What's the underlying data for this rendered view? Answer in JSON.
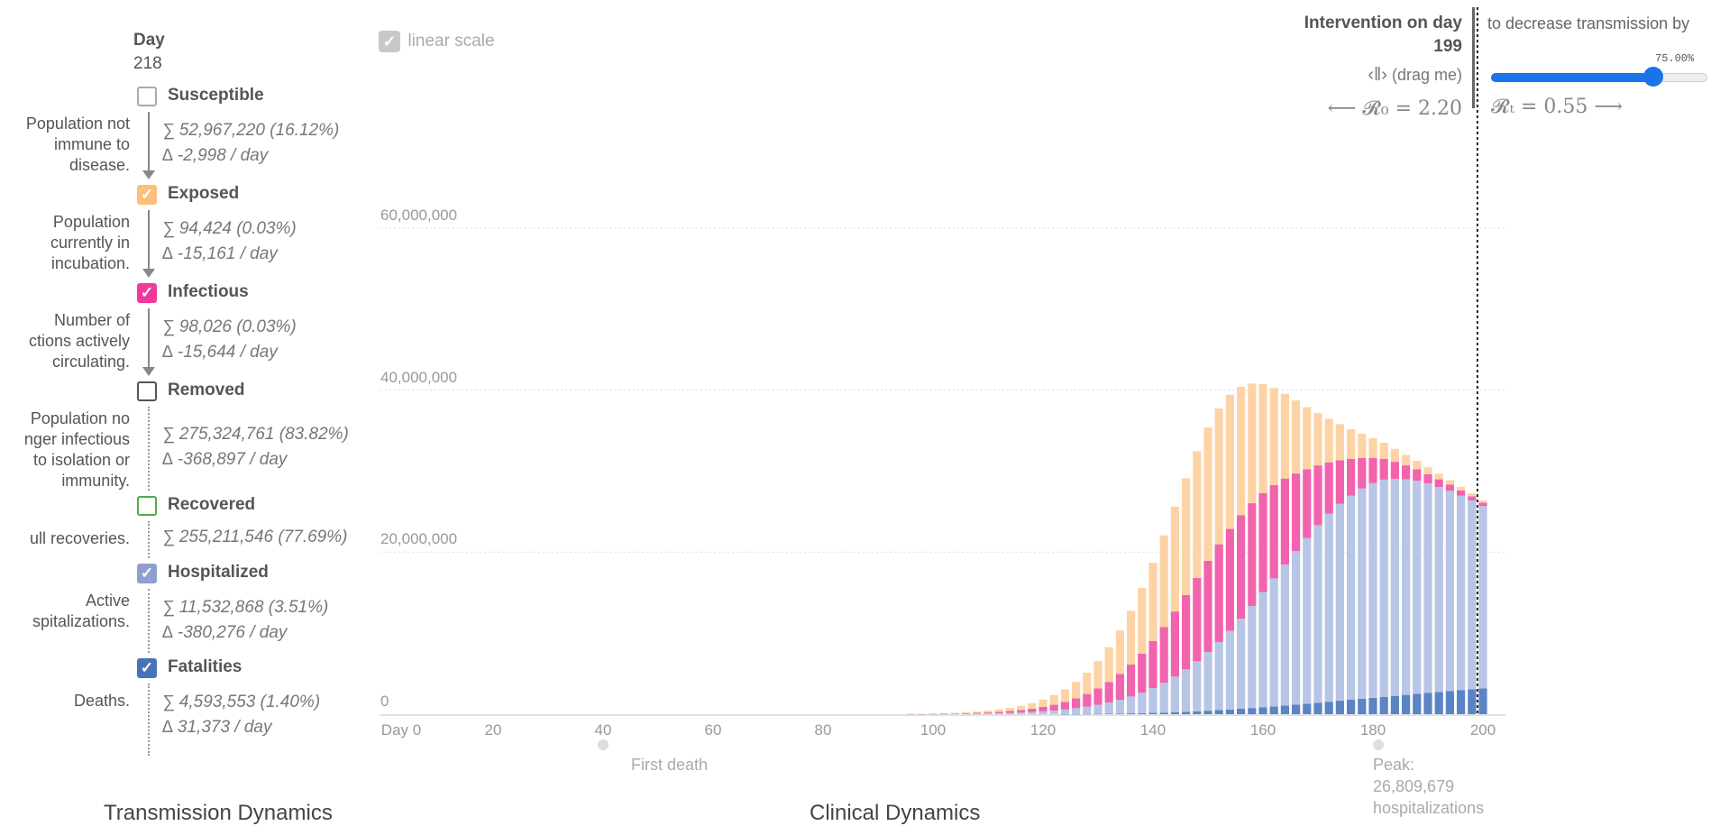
{
  "sidebar": {
    "day_title": "Day",
    "day_value": "218",
    "items": [
      {
        "label": "Susceptible",
        "checked": false,
        "color": "#aaaaaa",
        "desc_lines": [
          "Population not",
          "immune to",
          "disease."
        ],
        "sum": "∑ 52,967,220 (16.12%)",
        "delta": "∆ -2,998 / day",
        "connector": "arrow"
      },
      {
        "label": "Exposed",
        "checked": true,
        "color": "#fdbf7e",
        "desc_lines": [
          "Population",
          "currently in",
          "incubation."
        ],
        "sum": "∑ 94,424 (0.03%)",
        "delta": "∆ -15,161 / day",
        "connector": "arrow"
      },
      {
        "label": "Infectious",
        "checked": true,
        "color": "#f0399a",
        "desc_lines": [
          "Number of",
          "ctions actively",
          "circulating."
        ],
        "sum": "∑ 98,026 (0.03%)",
        "delta": "∆ -15,644 / day",
        "connector": "arrow"
      },
      {
        "label": "Removed",
        "checked": false,
        "color": "#555555",
        "desc_lines": [
          "Population no",
          "nger infectious",
          "to isolation or",
          "immunity."
        ],
        "sum": "∑ 275,324,761 (83.82%)",
        "delta": "∆ -368,897 / day",
        "connector": "dotted"
      },
      {
        "label": "Recovered",
        "checked": false,
        "color": "#4caf50",
        "desc_lines": [
          "ull recoveries."
        ],
        "sum": "∑ 255,211,546 (77.69%)",
        "delta": "",
        "connector": "dotted"
      },
      {
        "label": "Hospitalized",
        "checked": true,
        "color": "#8f9fcf",
        "desc_lines": [
          "Active",
          "spitalizations."
        ],
        "sum": "∑ 11,532,868 (3.51%)",
        "delta": "∆ -380,276 / day",
        "connector": "dotted"
      },
      {
        "label": "Fatalities",
        "checked": true,
        "color": "#4a72b8",
        "desc_lines": [
          "Deaths."
        ],
        "sum": "∑ 4,593,553 (1.40%)",
        "delta": "∆ 31,373 / day",
        "connector": "dotted"
      }
    ]
  },
  "controls": {
    "linear_scale_label": "linear scale",
    "intervention_title": "Intervention on day",
    "intervention_day": "199",
    "drag_label": "(drag me)",
    "r0_label": "⟵ 𝓡₀ = 2.20",
    "decrease_label": "to decrease transmission by",
    "decrease_value": "75.00%",
    "decrease_fraction": 0.75,
    "rt_label": "𝓡ₜ = 0.55 ⟶"
  },
  "annotations": {
    "first_death": "First death",
    "peak_lines": [
      "Peak:",
      "26,809,679",
      "hospitalizations"
    ]
  },
  "sections": {
    "left": "Transmission Dynamics",
    "right": "Clinical Dynamics"
  },
  "chart_data": {
    "type": "bar",
    "stacked": true,
    "x_tick_labels": [
      "Day 0",
      "20",
      "40",
      "60",
      "80",
      "100",
      "120",
      "140",
      "160",
      "180",
      "200"
    ],
    "x_ticks": [
      0,
      20,
      40,
      60,
      80,
      100,
      120,
      140,
      160,
      180,
      200
    ],
    "y_tick_labels": [
      "0",
      "20,000,000",
      "40,000,000",
      "60,000,000"
    ],
    "y_ticks": [
      0,
      20000000,
      40000000,
      60000000
    ],
    "xlim": [
      0,
      200
    ],
    "ylim": [
      0,
      77000000
    ],
    "grid": true,
    "intervention_day": 199,
    "first_death_day": 40,
    "peak_day": 181,
    "day_step": 2,
    "days": [
      96,
      98,
      100,
      102,
      104,
      106,
      108,
      110,
      112,
      114,
      116,
      118,
      120,
      122,
      124,
      126,
      128,
      130,
      132,
      134,
      136,
      138,
      140,
      142,
      144,
      146,
      148,
      150,
      152,
      154,
      156,
      158,
      160,
      162,
      164,
      166,
      168,
      170,
      172,
      174,
      176,
      178,
      180,
      182,
      184,
      186,
      188,
      190,
      192,
      194,
      196,
      198,
      200
    ],
    "series": [
      {
        "name": "Fatalities",
        "color": "#5b84c4",
        "values": [
          0,
          0,
          0,
          0,
          0,
          0,
          0,
          0,
          0,
          0,
          0,
          0,
          0,
          0,
          10000,
          20000,
          30000,
          50000,
          60000,
          80000,
          100000,
          130000,
          160000,
          200000,
          250000,
          300000,
          360000,
          430000,
          500000,
          580000,
          670000,
          760000,
          860000,
          960000,
          1070000,
          1180000,
          1300000,
          1420000,
          1540000,
          1660000,
          1780000,
          1900000,
          2020000,
          2140000,
          2260000,
          2380000,
          2500000,
          2620000,
          2740000,
          2860000,
          2980000,
          3080000,
          3180000
        ]
      },
      {
        "name": "Hospitalized",
        "color": "#b7c5e6",
        "values": [
          10000,
          10000,
          20000,
          30000,
          40000,
          50000,
          70000,
          90000,
          120000,
          160000,
          210000,
          270000,
          350000,
          450000,
          570000,
          720000,
          900000,
          1120000,
          1380000,
          1700000,
          2080000,
          2530000,
          3060000,
          3680000,
          4400000,
          5230000,
          6170000,
          7230000,
          8410000,
          9700000,
          11100000,
          12600000,
          14200000,
          15800000,
          17400000,
          18950000,
          20450000,
          21900000,
          23200000,
          24300000,
          25200000,
          25950000,
          26500000,
          26800000,
          26780000,
          26600000,
          26300000,
          25850000,
          25300000,
          24700000,
          24000000,
          23300000,
          22500000
        ]
      },
      {
        "name": "Infectious",
        "color": "#f263ad",
        "values": [
          10000,
          20000,
          20000,
          30000,
          50000,
          70000,
          90000,
          120000,
          170000,
          230000,
          300000,
          400000,
          540000,
          710000,
          930000,
          1210000,
          1560000,
          2000000,
          2540000,
          3180000,
          3940000,
          4820000,
          5800000,
          6880000,
          8020000,
          9170000,
          10280000,
          11260000,
          12050000,
          12580000,
          12790000,
          12670000,
          12230000,
          11520000,
          10610000,
          9570000,
          8470000,
          7380000,
          6340000,
          5380000,
          4520000,
          3760000,
          3110000,
          2560000,
          2100000,
          1720000,
          1410000,
          1150000,
          940000,
          770000,
          630000,
          510000,
          420000
        ]
      },
      {
        "name": "Exposed",
        "color": "#fdd3a6",
        "values": [
          20000,
          30000,
          50000,
          60000,
          90000,
          120000,
          160000,
          220000,
          290000,
          390000,
          520000,
          690000,
          910000,
          1200000,
          1570000,
          2040000,
          2640000,
          3380000,
          4290000,
          5370000,
          6640000,
          8080000,
          9660000,
          11310000,
          12940000,
          14430000,
          15640000,
          16450000,
          16760000,
          16550000,
          15850000,
          14770000,
          13430000,
          11960000,
          10460000,
          9010000,
          7660000,
          6450000,
          5380000,
          4450000,
          3660000,
          2990000,
          2440000,
          1980000,
          1600000,
          1300000,
          1050000,
          850000,
          690000,
          550000,
          450000,
          360000,
          290000
        ]
      }
    ]
  }
}
